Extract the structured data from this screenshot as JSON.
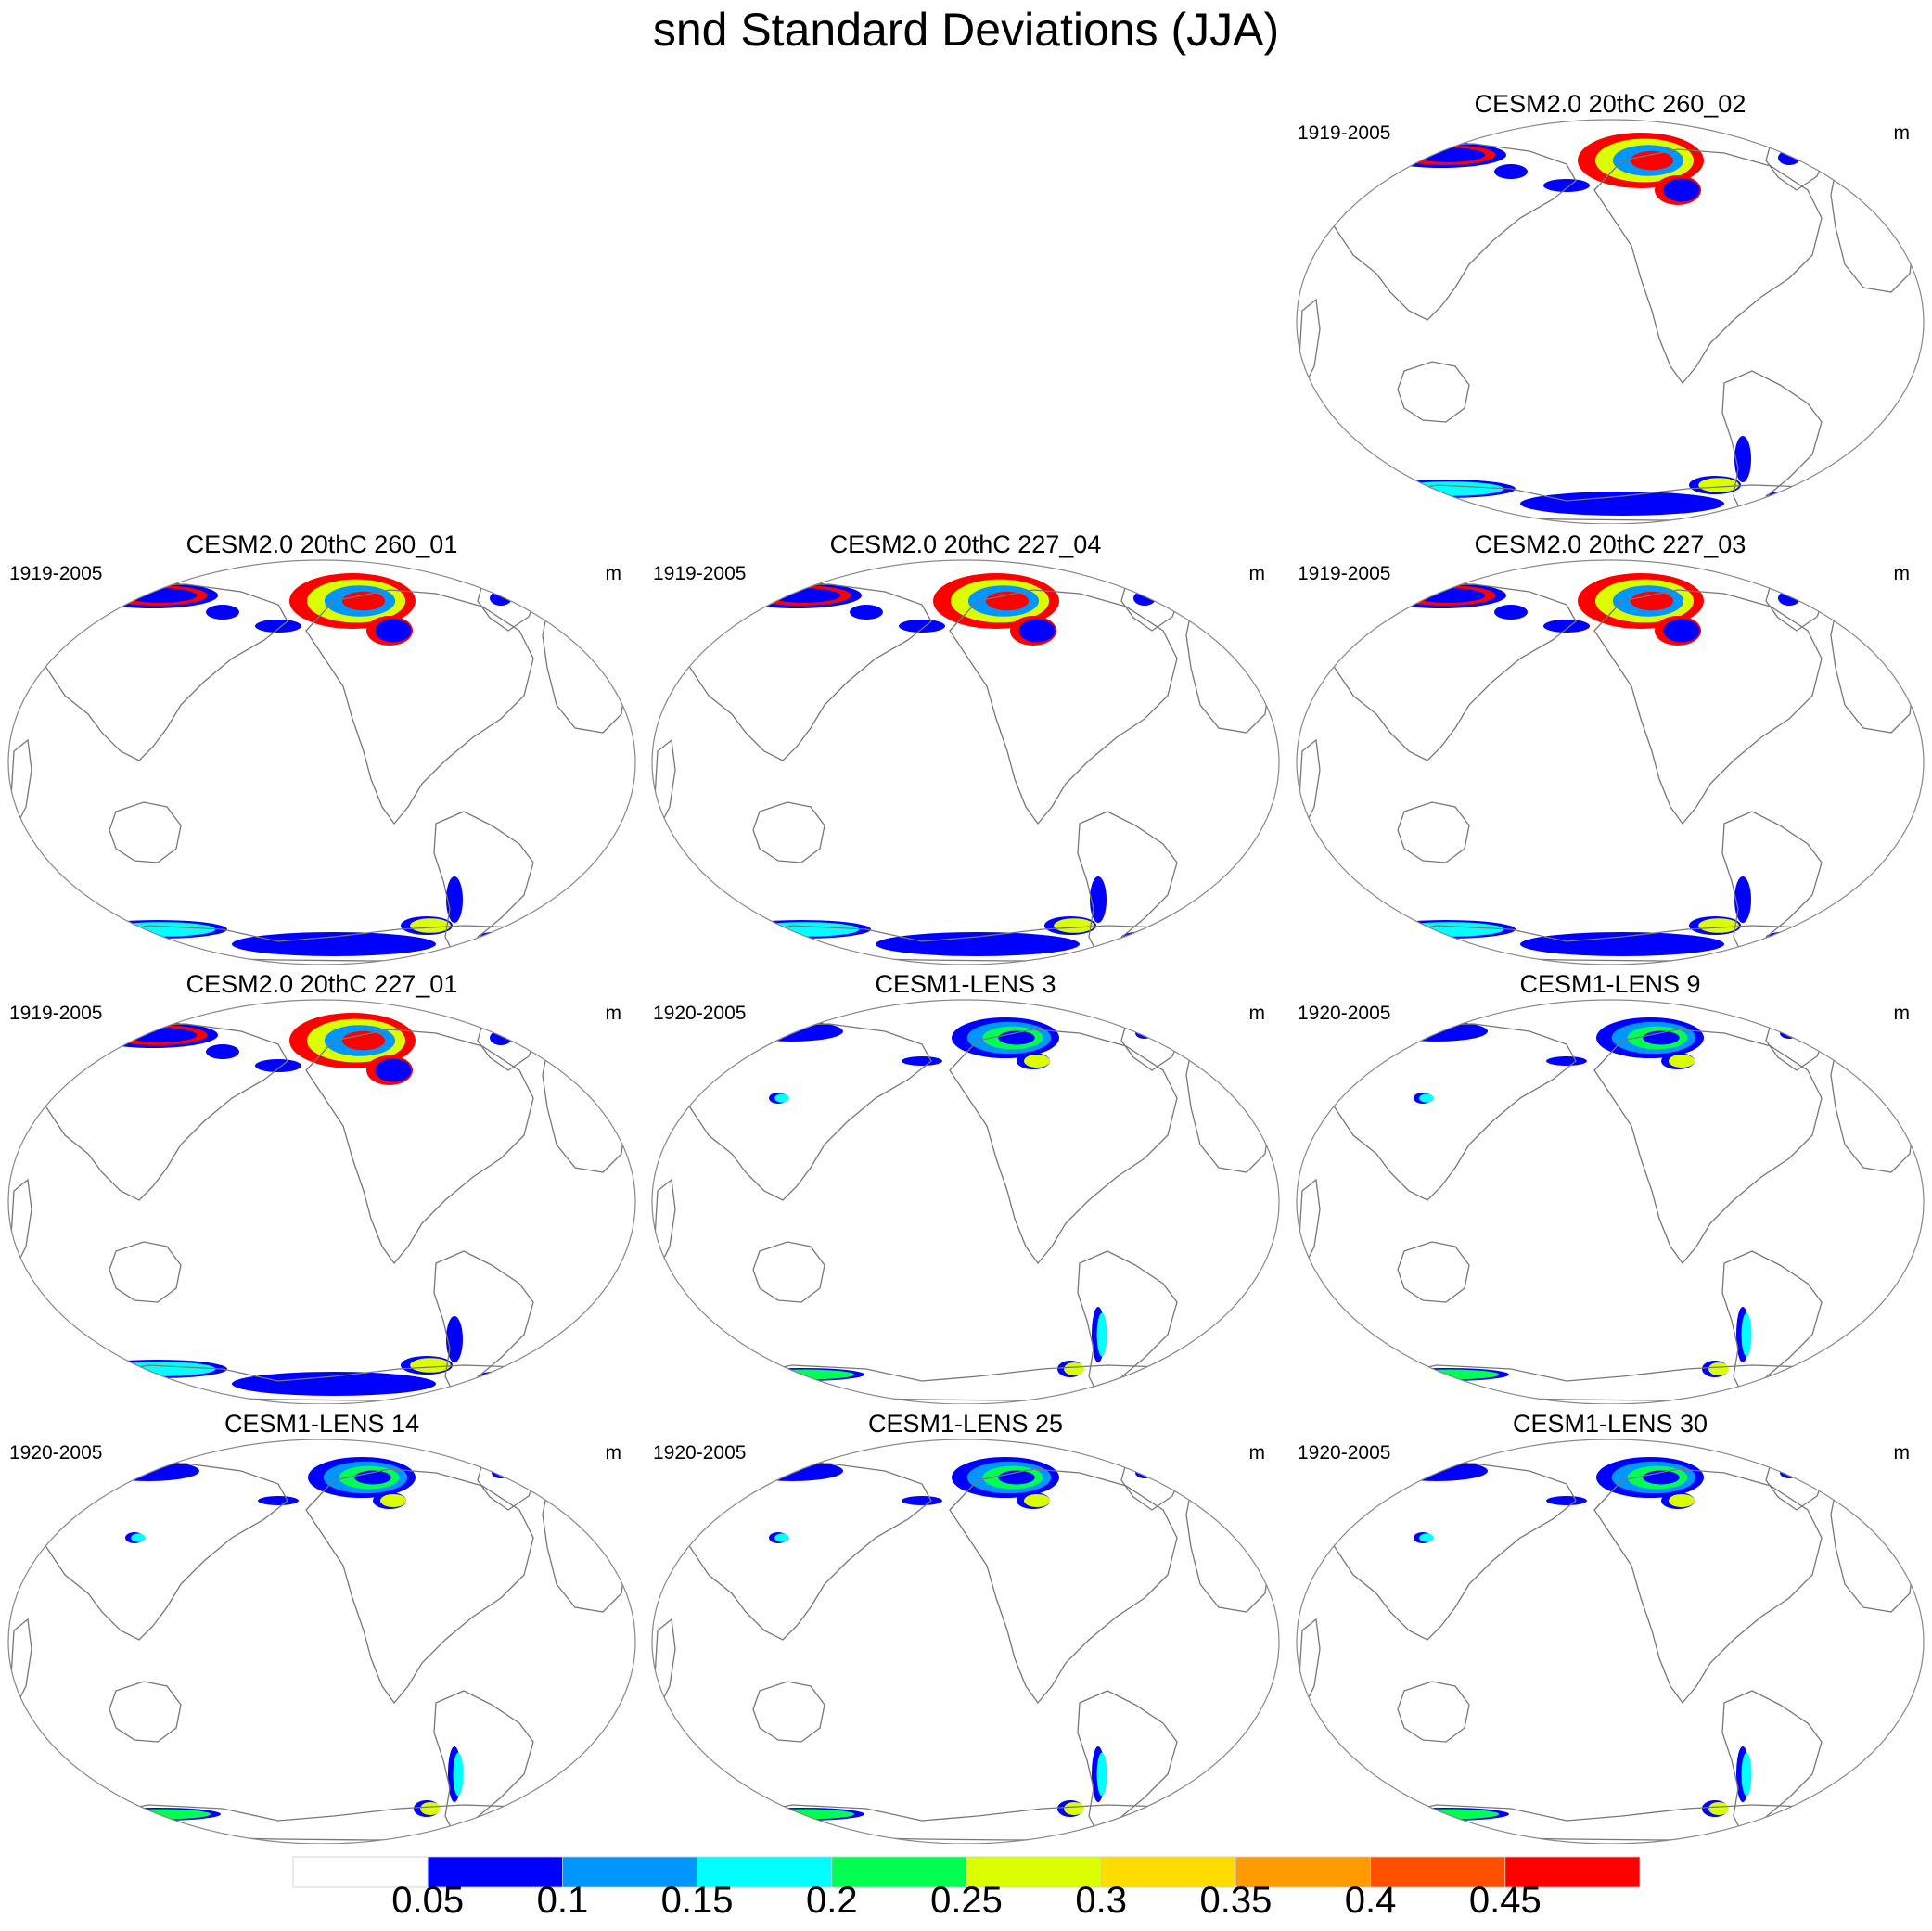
{
  "title": "snd Standard Deviations (JJA)",
  "units": "m",
  "panels": [
    {
      "row": 0,
      "col": 2,
      "title": "CESM2.0 20thC 260_02",
      "period": "1919-2005",
      "family": "cesm2",
      "north": 3,
      "south": 3
    },
    {
      "row": 1,
      "col": 0,
      "title": "CESM2.0 20thC 260_01",
      "period": "1919-2005",
      "family": "cesm2",
      "north": 3,
      "south": 3
    },
    {
      "row": 1,
      "col": 1,
      "title": "CESM2.0 20thC 227_04",
      "period": "1919-2005",
      "family": "cesm2",
      "north": 3,
      "south": 3
    },
    {
      "row": 1,
      "col": 2,
      "title": "CESM2.0 20thC 227_03",
      "period": "1919-2005",
      "family": "cesm2",
      "north": 3,
      "south": 3
    },
    {
      "row": 2,
      "col": 0,
      "title": "CESM2.0 20thC 227_01",
      "period": "1919-2005",
      "family": "cesm2",
      "north": 3,
      "south": 3
    },
    {
      "row": 2,
      "col": 1,
      "title": "CESM1-LENS 3",
      "period": "1920-2005",
      "family": "lens",
      "north": 1,
      "south": 1
    },
    {
      "row": 2,
      "col": 2,
      "title": "CESM1-LENS 9",
      "period": "1920-2005",
      "family": "lens",
      "north": 1,
      "south": 1
    },
    {
      "row": 3,
      "col": 0,
      "title": "CESM1-LENS 14",
      "period": "1920-2005",
      "family": "lens",
      "north": 1,
      "south": 1
    },
    {
      "row": 3,
      "col": 1,
      "title": "CESM1-LENS 25",
      "period": "1920-2005",
      "family": "lens",
      "north": 1,
      "south": 1
    },
    {
      "row": 3,
      "col": 2,
      "title": "CESM1-LENS 30",
      "period": "1920-2005",
      "family": "lens",
      "north": 1,
      "south": 1
    }
  ],
  "colorbar": {
    "levels": [
      "0.05",
      "0.1",
      "0.15",
      "0.2",
      "0.25",
      "0.3",
      "0.35",
      "0.4",
      "0.45"
    ],
    "colors": [
      "#ffffff",
      "#0000ff",
      "#0096ff",
      "#00ffff",
      "#00ff50",
      "#dcff00",
      "#ffdc00",
      "#ff9b00",
      "#ff5000",
      "#ff0000"
    ]
  },
  "map_colors": {
    "coast": "#777777",
    "border": "#888888"
  }
}
